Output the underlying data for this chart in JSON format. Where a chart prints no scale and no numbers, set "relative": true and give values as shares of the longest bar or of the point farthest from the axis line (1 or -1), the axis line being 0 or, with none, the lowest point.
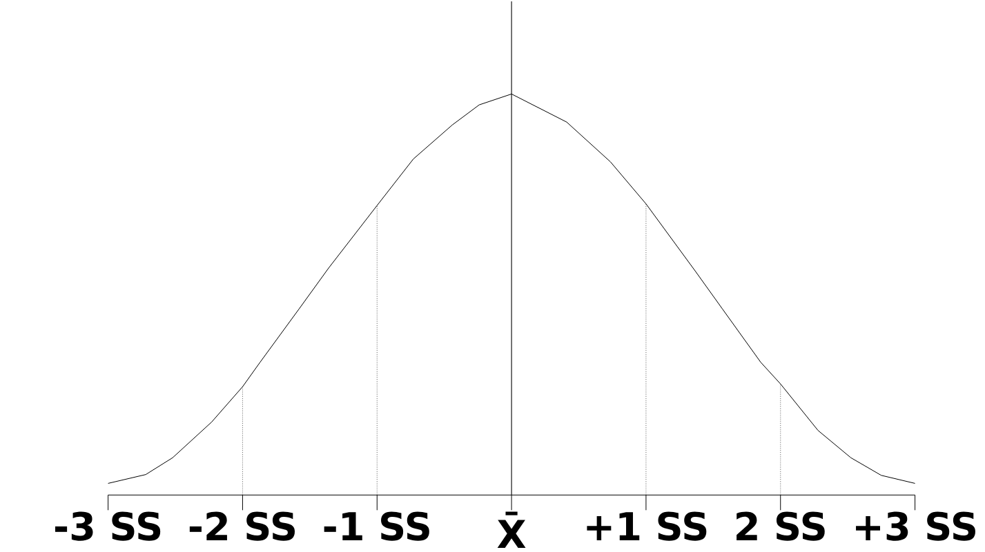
{
  "chart_data": {
    "type": "line",
    "relative": true,
    "x": [
      -3,
      -2.72,
      -2.52,
      -2.23,
      -2,
      -1.87,
      -1.58,
      -1.36,
      -1,
      -0.73,
      -0.44,
      -0.24,
      0,
      0.41,
      0.735,
      1,
      1.365,
      1.568,
      1.853,
      2,
      2.279,
      2.523,
      2.749,
      3
    ],
    "xlim": [
      -3,
      3
    ],
    "xticks": [
      {
        "value": -3,
        "label": "-3 SS"
      },
      {
        "value": -2,
        "label": "-2 SS"
      },
      {
        "value": -1,
        "label": "-1 SS"
      },
      {
        "value": 0,
        "label": "X̄"
      },
      {
        "value": 1,
        "label": "+1 SS"
      },
      {
        "value": 2,
        "label": "2 SS"
      },
      {
        "value": 3,
        "label": "+3 SS"
      }
    ],
    "series": [
      {
        "color": "#000000",
        "values": [
          0.029,
          0.051,
          0.093,
          0.182,
          0.27,
          0.331,
          0.464,
          0.566,
          0.722,
          0.838,
          0.923,
          0.973,
          1.0,
          0.93,
          0.831,
          0.726,
          0.559,
          0.464,
          0.331,
          0.277,
          0.161,
          0.093,
          0.049,
          0.029
        ]
      }
    ],
    "marker": "none",
    "line_style": "solid",
    "ref_lines": [
      {
        "axis": "x",
        "value": -2,
        "line_style": "dotted"
      },
      {
        "axis": "x",
        "value": -1,
        "line_style": "dotted"
      },
      {
        "axis": "x",
        "value": 1,
        "line_style": "dotted"
      },
      {
        "axis": "x",
        "value": 2,
        "line_style": "dotted"
      }
    ]
  }
}
